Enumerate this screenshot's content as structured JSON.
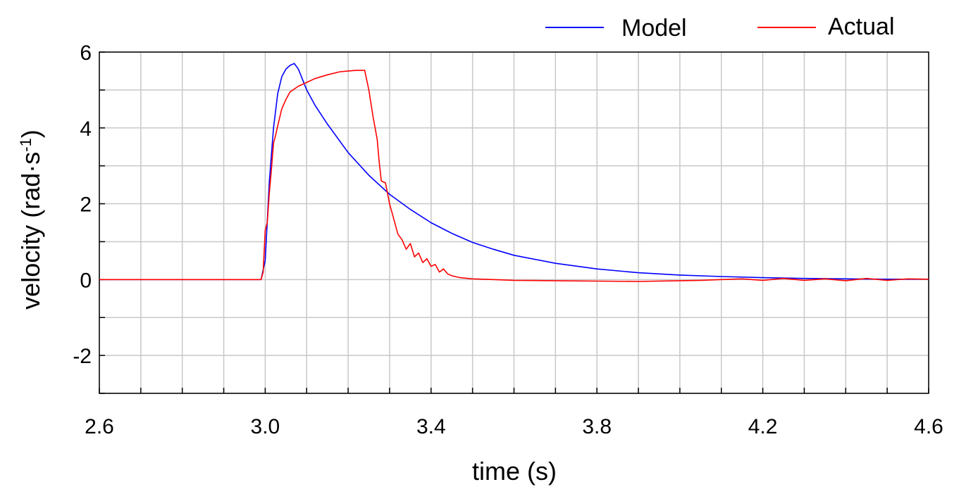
{
  "chart_data": {
    "type": "line",
    "title": "",
    "xlabel": "time (s)",
    "ylabel_main": "velocity (rad·s",
    "ylabel_sup": "-1",
    "ylabel_close": ")",
    "xlim": [
      2.6,
      4.6
    ],
    "ylim": [
      -3,
      6
    ],
    "x_ticks": [
      2.6,
      3.0,
      3.4,
      3.8,
      4.2,
      4.6
    ],
    "x_tick_labels": [
      "2.6",
      "3.0",
      "3.4",
      "3.8",
      "4.2",
      "4.6"
    ],
    "y_ticks": [
      -2,
      0,
      2,
      4,
      6
    ],
    "y_tick_labels": [
      "-2",
      "0",
      "2",
      "4",
      "6"
    ],
    "grid": true,
    "legend_position": "top-right",
    "series": [
      {
        "name": "Model",
        "color": "#0000ff",
        "x": [
          2.6,
          2.99,
          3.0,
          3.01,
          3.02,
          3.03,
          3.04,
          3.05,
          3.06,
          3.07,
          3.08,
          3.1,
          3.12,
          3.15,
          3.2,
          3.25,
          3.3,
          3.35,
          3.4,
          3.45,
          3.5,
          3.55,
          3.6,
          3.7,
          3.8,
          3.9,
          4.0,
          4.1,
          4.2,
          4.3,
          4.4,
          4.5,
          4.6
        ],
        "y": [
          0,
          0,
          0.5,
          2.6,
          4.0,
          4.9,
          5.35,
          5.55,
          5.65,
          5.7,
          5.55,
          5.0,
          4.6,
          4.1,
          3.35,
          2.75,
          2.25,
          1.85,
          1.5,
          1.22,
          0.98,
          0.8,
          0.64,
          0.43,
          0.28,
          0.18,
          0.12,
          0.08,
          0.05,
          0.03,
          0.02,
          0.01,
          0.01
        ]
      },
      {
        "name": "Actual",
        "color": "#ff0000",
        "x": [
          2.6,
          2.99,
          2.995,
          3.0,
          3.005,
          3.01,
          3.015,
          3.02,
          3.025,
          3.03,
          3.04,
          3.05,
          3.06,
          3.08,
          3.1,
          3.12,
          3.15,
          3.18,
          3.2,
          3.22,
          3.24,
          3.25,
          3.26,
          3.27,
          3.275,
          3.28,
          3.29,
          3.3,
          3.31,
          3.32,
          3.33,
          3.34,
          3.35,
          3.36,
          3.37,
          3.38,
          3.39,
          3.4,
          3.41,
          3.42,
          3.43,
          3.44,
          3.45,
          3.47,
          3.5,
          3.55,
          3.6,
          3.7,
          3.8,
          3.9,
          4.0,
          4.05,
          4.1,
          4.15,
          4.2,
          4.25,
          4.3,
          4.35,
          4.4,
          4.45,
          4.5,
          4.55,
          4.6
        ],
        "y": [
          0,
          0,
          0.2,
          1.3,
          1.5,
          2.3,
          2.9,
          3.6,
          3.8,
          4.05,
          4.5,
          4.75,
          4.95,
          5.1,
          5.2,
          5.3,
          5.4,
          5.48,
          5.5,
          5.52,
          5.52,
          5.0,
          4.3,
          3.7,
          3.1,
          2.6,
          2.55,
          2.0,
          1.6,
          1.2,
          1.05,
          0.8,
          0.95,
          0.6,
          0.7,
          0.45,
          0.55,
          0.35,
          0.4,
          0.2,
          0.28,
          0.15,
          0.1,
          0.05,
          0.02,
          0.0,
          -0.02,
          -0.03,
          -0.04,
          -0.05,
          -0.03,
          -0.02,
          0.0,
          0.02,
          -0.02,
          0.03,
          -0.02,
          0.02,
          -0.03,
          0.03,
          -0.02,
          0.02,
          0.01
        ]
      }
    ]
  }
}
